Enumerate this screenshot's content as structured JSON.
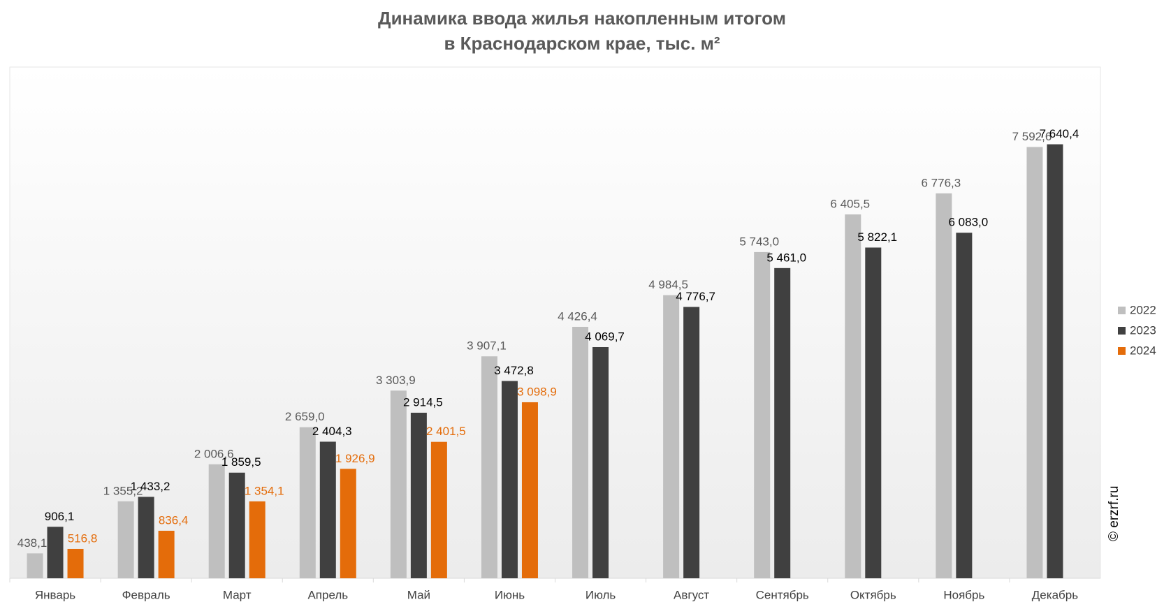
{
  "chart_data": {
    "type": "bar",
    "title": "Динамика ввода жилья накопленным итогом",
    "subtitle": "в Краснодарском крае, тыс. м²",
    "watermark": "© erzrf.ru",
    "categories": [
      "Январь",
      "Февраль",
      "Март",
      "Апрель",
      "Май",
      "Июнь",
      "Июль",
      "Август",
      "Сентябрь",
      "Октябрь",
      "Ноябрь",
      "Декабрь"
    ],
    "ylim": [
      0,
      9000
    ],
    "legend": "right",
    "series": [
      {
        "name": "2022",
        "color": "#bfbfbf",
        "label_color": "#595959",
        "values": [
          438.1,
          1355.2,
          2006.6,
          2659.0,
          3303.9,
          3907.1,
          4426.4,
          4984.5,
          5743.0,
          6405.5,
          6776.3,
          7592.6
        ],
        "value_labels": [
          "438,1",
          "1 355,2",
          "2 006,6",
          "2 659,0",
          "3 303,9",
          "3 907,1",
          "4 426,4",
          "4 984,5",
          "5 743,0",
          "6 405,5",
          "6 776,3",
          "7 592,6"
        ]
      },
      {
        "name": "2023",
        "color": "#404040",
        "label_color": "#000000",
        "values": [
          906.1,
          1433.2,
          1859.5,
          2404.3,
          2914.5,
          3472.8,
          4069.7,
          4776.7,
          5461.0,
          5822.1,
          6083.0,
          7640.4
        ],
        "value_labels": [
          "906,1",
          "1 433,2",
          "1 859,5",
          "2 404,3",
          "2 914,5",
          "3 472,8",
          "4 069,7",
          "4 776,7",
          "5 461,0",
          "5 822,1",
          "6 083,0",
          "7 640,4"
        ]
      },
      {
        "name": "2024",
        "color": "#e46c0a",
        "label_color": "#e46c0a",
        "values": [
          516.8,
          836.4,
          1354.1,
          1926.9,
          2401.5,
          3098.9,
          null,
          null,
          null,
          null,
          null,
          null
        ],
        "value_labels": [
          "516,8",
          "836,4",
          "1 354,1",
          "1 926,9",
          "2 401,5",
          "3 098,9",
          null,
          null,
          null,
          null,
          null,
          null
        ]
      }
    ]
  }
}
